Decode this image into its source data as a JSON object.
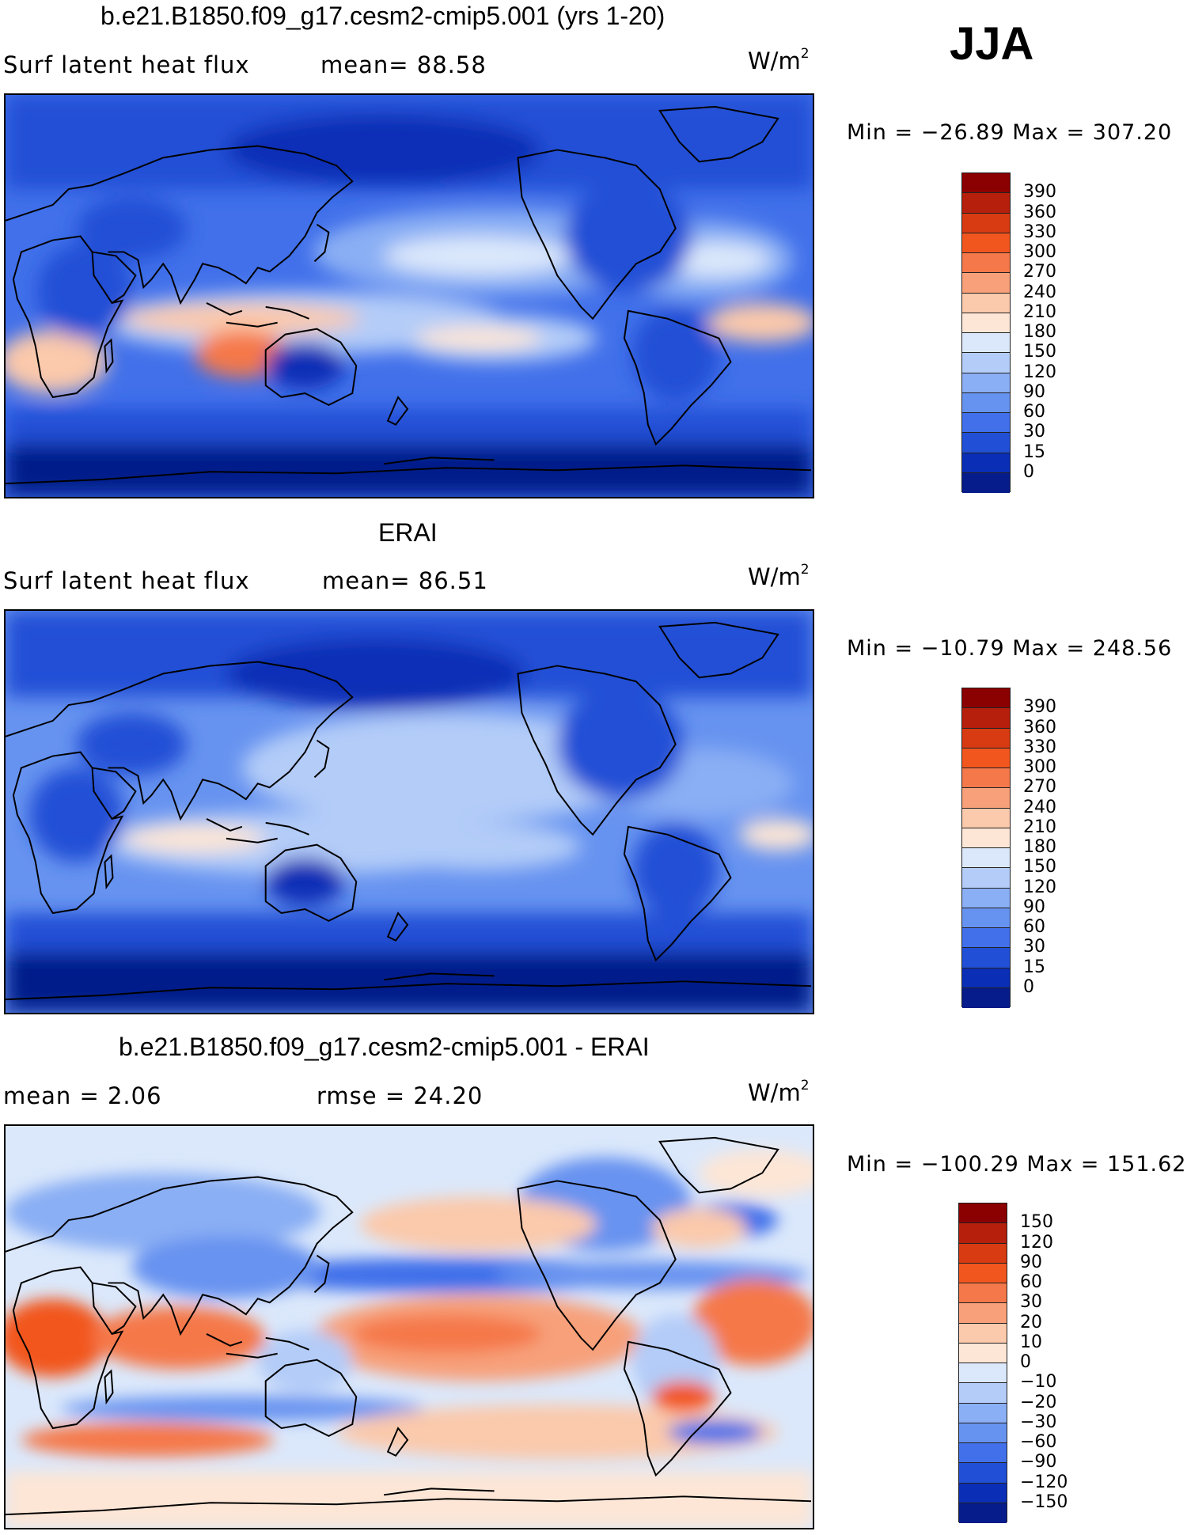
{
  "season": "JJA",
  "panels": [
    {
      "title": "b.e21.B1850.f09_g17.cesm2-cmip5.001 (yrs 1-20)",
      "left_label": "Surf  latent  heat  flux",
      "right_label": "mean=   88.58",
      "units_base": "W/m",
      "units_exp": "2",
      "minmax": "Min  =  −26.89  Max  =  307.20",
      "colorbar_labels": [
        "390",
        "360",
        "330",
        "300",
        "270",
        "240",
        "210",
        "180",
        "150",
        "120",
        "90",
        "60",
        "30",
        "15",
        "0"
      ],
      "colorbar_colors": [
        "#8b0000",
        "#b51f0c",
        "#d83a12",
        "#f2561f",
        "#f5784a",
        "#f7a07a",
        "#fbc9ab",
        "#fde6d6",
        "#dbe8fb",
        "#b3ccf8",
        "#8aaff4",
        "#6793f0",
        "#4170ea",
        "#2150d6",
        "#0a2eb6",
        "#061c8a"
      ]
    },
    {
      "title": "ERAI",
      "left_label": "Surf  latent  heat  flux",
      "right_label": "mean=   86.51",
      "units_base": "W/m",
      "units_exp": "2",
      "minmax": "Min  =  −10.79  Max  =  248.56",
      "colorbar_labels": [
        "390",
        "360",
        "330",
        "300",
        "270",
        "240",
        "210",
        "180",
        "150",
        "120",
        "90",
        "60",
        "30",
        "15",
        "0"
      ],
      "colorbar_colors": [
        "#8b0000",
        "#b51f0c",
        "#d83a12",
        "#f2561f",
        "#f5784a",
        "#f7a07a",
        "#fbc9ab",
        "#fde6d6",
        "#dbe8fb",
        "#b3ccf8",
        "#8aaff4",
        "#6793f0",
        "#4170ea",
        "#2150d6",
        "#0a2eb6",
        "#061c8a"
      ]
    },
    {
      "title": "b.e21.B1850.f09_g17.cesm2-cmip5.001 - ERAI",
      "left_label": "mean  =     2.06",
      "right_label": "rmse  =    24.20",
      "units_base": "W/m",
      "units_exp": "2",
      "minmax": "Min  =  −100.29  Max  =  151.62",
      "colorbar_labels": [
        "150",
        "120",
        "90",
        "60",
        "30",
        "20",
        "10",
        "0",
        "−10",
        "−20",
        "−30",
        "−60",
        "−90",
        "−120",
        "−150"
      ],
      "colorbar_colors": [
        "#8b0000",
        "#b51f0c",
        "#d83a12",
        "#f2561f",
        "#f5784a",
        "#f7a07a",
        "#fbc9ab",
        "#fde6d6",
        "#dbe8fb",
        "#b3ccf8",
        "#8aaff4",
        "#6793f0",
        "#4170ea",
        "#2150d6",
        "#0a2eb6",
        "#061c8a"
      ]
    }
  ]
}
